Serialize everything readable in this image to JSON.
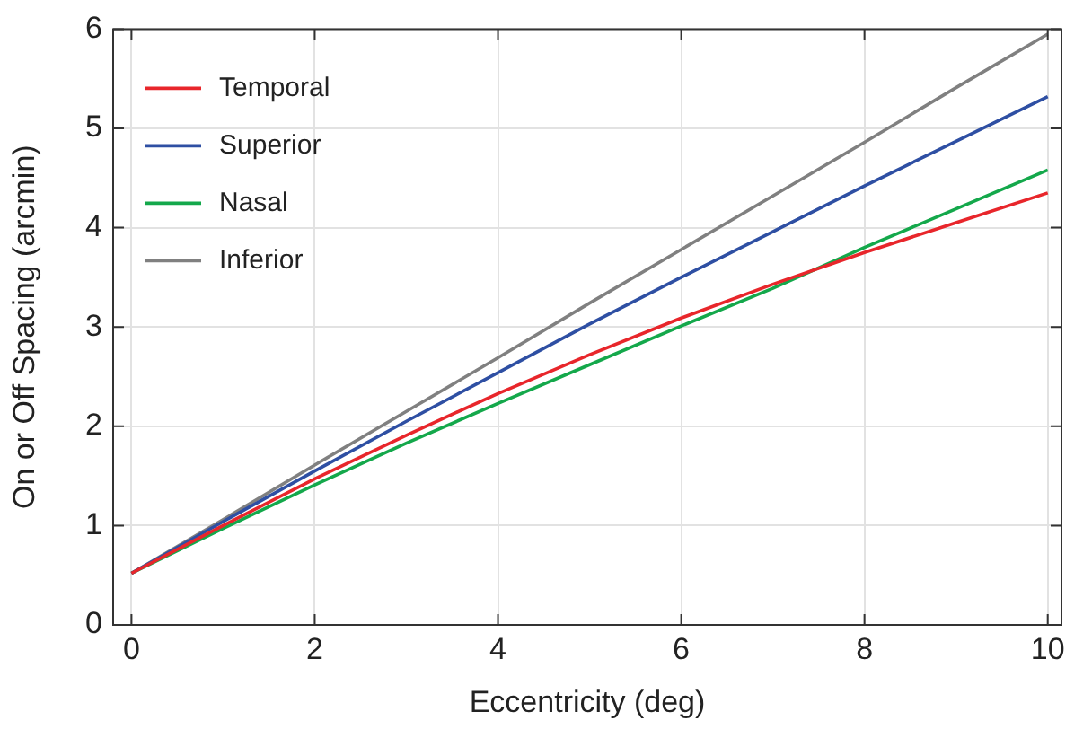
{
  "chart_data": {
    "type": "line",
    "xlabel": "Eccentricity (deg)",
    "ylabel": "On or Off Spacing (arcmin)",
    "x": [
      0,
      1,
      2,
      3,
      4,
      5,
      6,
      7,
      8,
      9,
      10
    ],
    "xlim": [
      -0.2,
      10.15
    ],
    "xticks": [
      0,
      2,
      4,
      6,
      8,
      10
    ],
    "ylim": [
      0,
      6
    ],
    "yticks": [
      0,
      1,
      2,
      3,
      4,
      5,
      6
    ],
    "grid": true,
    "legend": "top left",
    "marker": "none",
    "line_style": "solid",
    "series": [
      {
        "name": "Temporal",
        "color": "#e8262b",
        "values": [
          0.52,
          1.0,
          1.47,
          1.91,
          2.33,
          2.72,
          3.09,
          3.43,
          3.75,
          4.05,
          4.35
        ]
      },
      {
        "name": "Superior",
        "color": "#2e4fa3",
        "values": [
          0.52,
          1.04,
          1.55,
          2.05,
          2.54,
          3.03,
          3.5,
          3.96,
          4.42,
          4.87,
          5.32
        ]
      },
      {
        "name": "Nasal",
        "color": "#14a84b",
        "values": [
          0.52,
          0.97,
          1.41,
          1.83,
          2.23,
          2.62,
          3.01,
          3.39,
          3.8,
          4.19,
          4.58
        ]
      },
      {
        "name": "Inferior",
        "color": "#808080",
        "values": [
          0.52,
          1.06,
          1.61,
          2.15,
          2.69,
          3.24,
          3.78,
          4.32,
          4.86,
          5.41,
          5.95
        ]
      }
    ]
  }
}
